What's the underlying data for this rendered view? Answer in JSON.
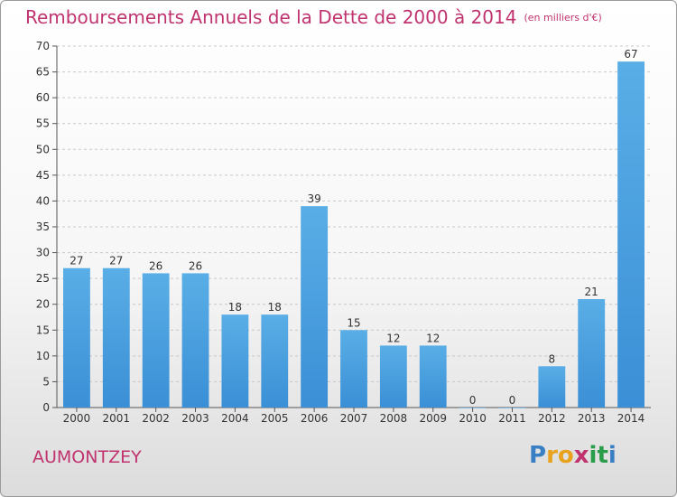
{
  "chart_data": {
    "type": "bar",
    "title": "Remboursements Annuels de la Dette de 2000 à 2014",
    "unit_note": "(en milliers d'€)",
    "categories": [
      "2000",
      "2001",
      "2002",
      "2003",
      "2004",
      "2005",
      "2006",
      "2007",
      "2008",
      "2009",
      "2010",
      "2011",
      "2012",
      "2013",
      "2014"
    ],
    "values": [
      27,
      27,
      26,
      26,
      18,
      18,
      39,
      15,
      12,
      12,
      0,
      0,
      8,
      21,
      67
    ],
    "ylim": [
      0,
      70
    ],
    "yticks": [
      0,
      5,
      10,
      15,
      20,
      25,
      30,
      35,
      40,
      45,
      50,
      55,
      60,
      65,
      70
    ],
    "grid": "horizontal dashed",
    "bar_color": "#3a8fd6",
    "bar_color_light": "#5aaee6",
    "xlabel": "",
    "ylabel": ""
  },
  "location_name": "AUMONTZEY",
  "logo": {
    "letters": [
      "P",
      "r",
      "o",
      "x",
      "i",
      "t",
      "i"
    ],
    "colors": [
      "#3a7fc4",
      "#e8a21c",
      "#e8a21c",
      "#c0336f",
      "#2a9d4a",
      "#2a9d4a",
      "#3a7fc4"
    ]
  },
  "colors": {
    "title": "#c0336f",
    "axis": "#555555",
    "grid": "#c8c8c8"
  }
}
